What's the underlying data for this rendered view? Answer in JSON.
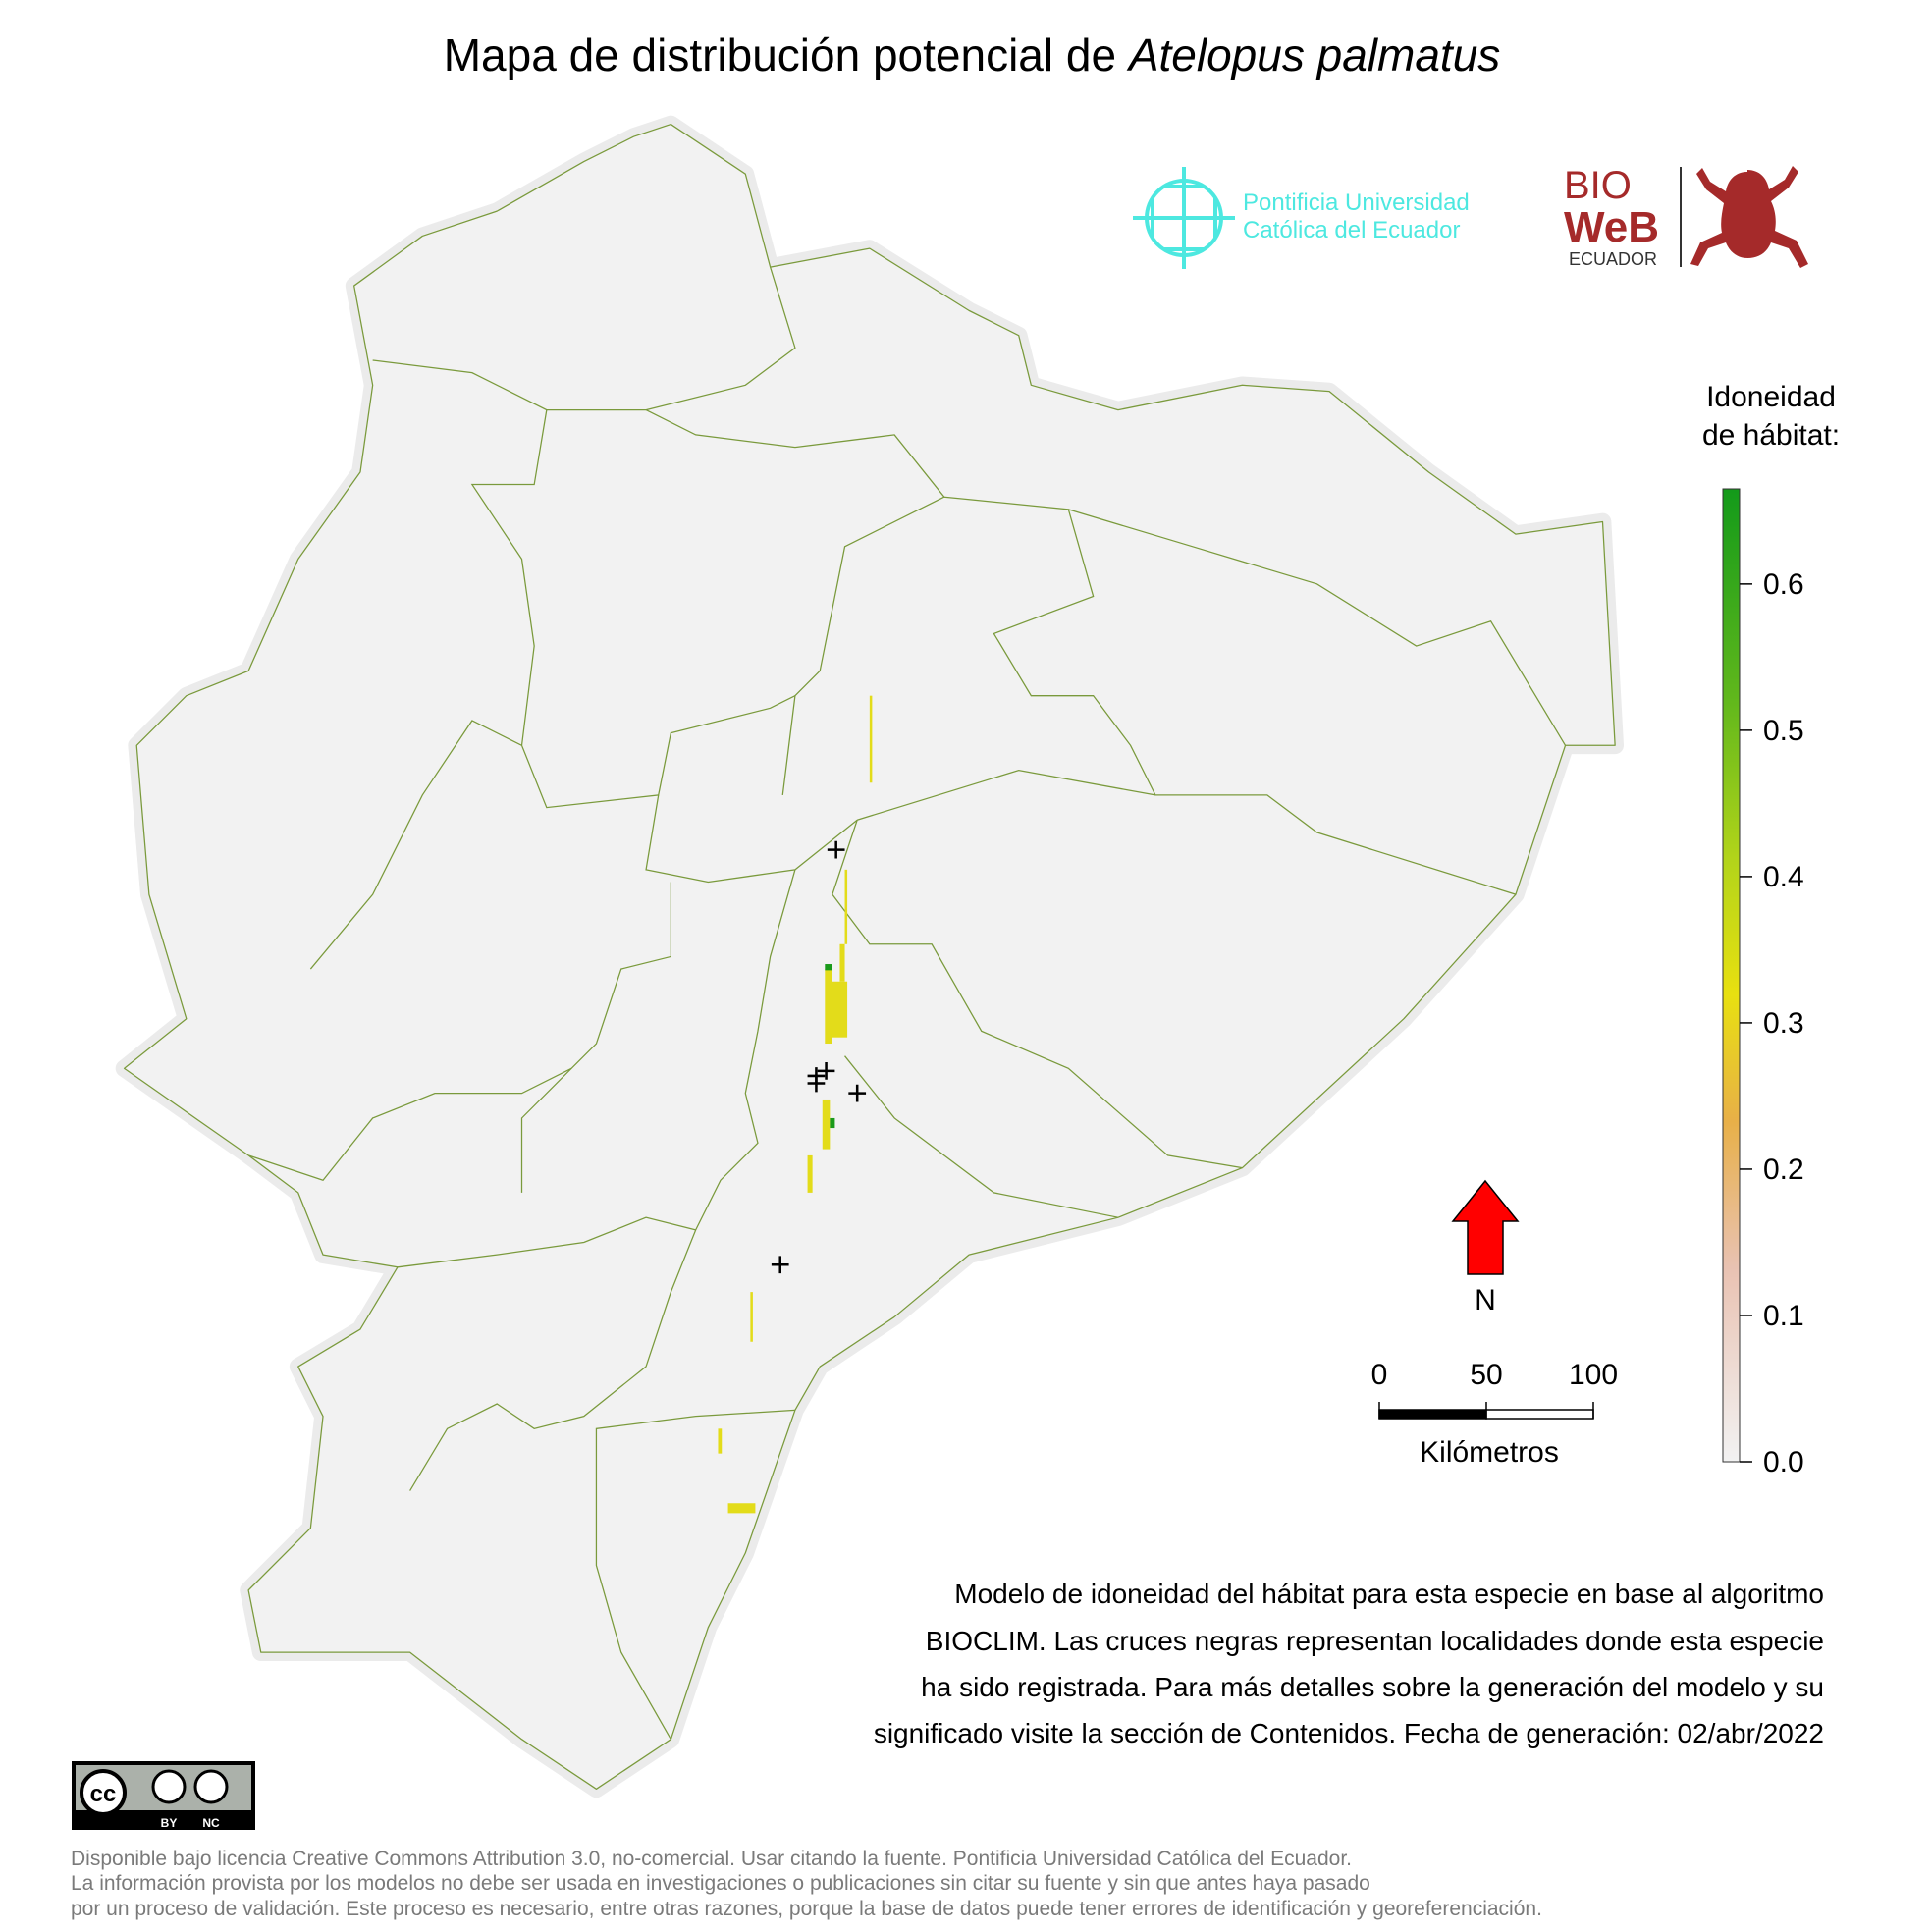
{
  "title": {
    "prefix": "Mapa de distribución potencial de ",
    "species": "Atelopus palmatus"
  },
  "logos": {
    "puce": [
      "Pontificia Universidad",
      "Católica del Ecuador"
    ],
    "bioweb": [
      "BIO",
      "WeB",
      "ECUADOR"
    ]
  },
  "legend": {
    "title": [
      "Idoneidad",
      "de hábitat:"
    ],
    "lim": [
      0,
      0.665
    ],
    "ticks": [
      {
        "value": 0,
        "label": "0.0"
      },
      0.1,
      0.2,
      0.3,
      0.4,
      0.5,
      0.6
    ]
  },
  "north": "N",
  "scale": {
    "ticks": [
      0,
      50,
      100
    ],
    "label": "Kilómetros"
  },
  "description": [
    "Modelo de idoneidad del hábitat para esta especie en base al algoritmo",
    "BIOCLIM. Las cruces negras representan localidades donde esta especie",
    "ha sido registrada. Para más detalles sobre la generación del modelo y su",
    "significado visite la sección de Contenidos. Fecha de generación: 02/abr/2022"
  ],
  "license": {
    "badge": [
      "BY",
      "NC"
    ],
    "lines": [
      "Disponible bajo licencia Creative Commons Attribution 3.0, no-comercial. Usar citando la fuente. Pontificia Universidad Católica del Ecuador.",
      "La información provista por los modelos no debe ser usada en investigaciones o publicaciones sin citar su fuente y sin que antes haya pasado",
      "por un proceso de validación. Este proceso es necesario, entre otras razones, porque la base de datos puede tener errores de identificación y georeferenciación."
    ]
  }
}
